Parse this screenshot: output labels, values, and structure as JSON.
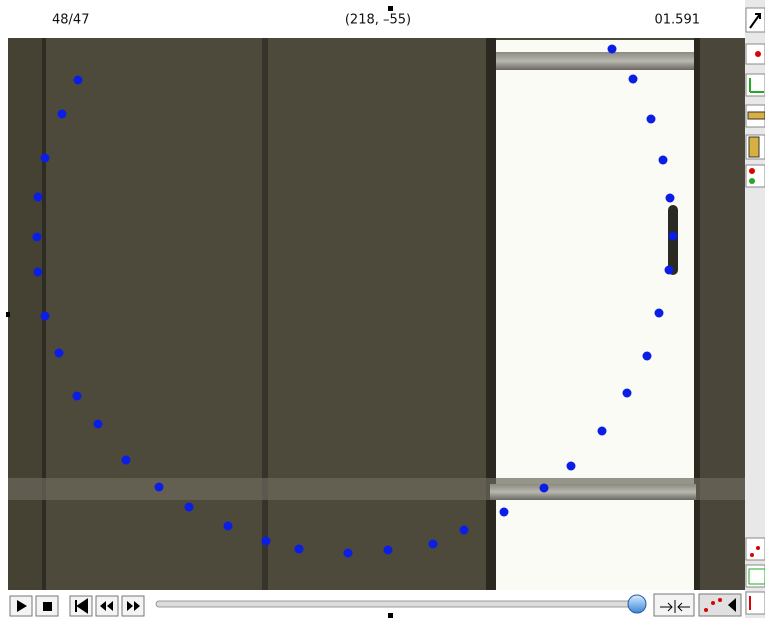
{
  "header": {
    "frame": "48/47",
    "coordinates": "(218, –55)",
    "time": "01.591"
  }
}
